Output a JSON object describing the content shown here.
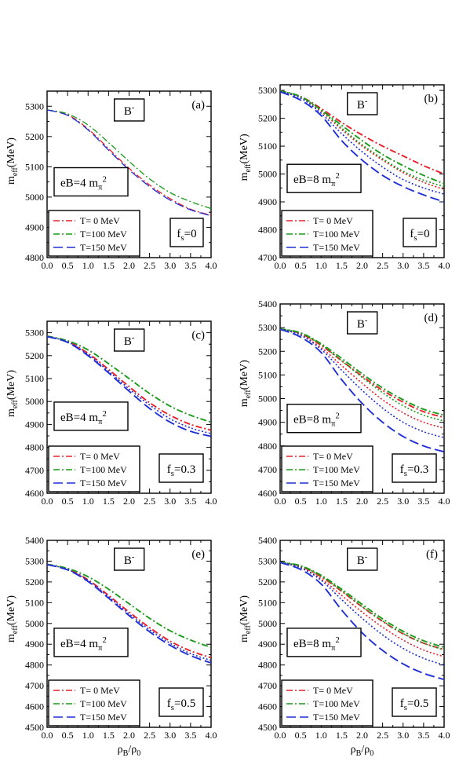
{
  "chart_data": [
    {
      "type": "line",
      "panel_label": "(a)",
      "particle": "B",
      "charge_sup": "-",
      "field_text": "eB=4 m",
      "field_sub": "π",
      "field_sup": "2",
      "fs_main": "f",
      "fs_sub": "s",
      "fs_value": "=0",
      "ylabel_main": "m",
      "ylabel_sub": "eff",
      "ylabel_unit": "(MeV)",
      "xlabel_rho": "ρ",
      "xlabel_B": "B",
      "xlabel_slash": "/",
      "xlabel_0": "0",
      "ylim": [
        4800,
        5350
      ],
      "xlim": [
        0,
        4
      ],
      "yticks": [
        "4800",
        "4900",
        "5000",
        "5100",
        "5200",
        "5300"
      ],
      "xticks": [
        "0.0",
        "0.5",
        "1.0",
        "1.5",
        "2.0",
        "2.5",
        "3.0",
        "3.5",
        "4.0"
      ],
      "legend": [
        "T= 0 MeV",
        "T=100 MeV",
        "T=150 MeV"
      ],
      "colors": [
        "#e8202a",
        "#1a9a1a",
        "#1f2fd4"
      ],
      "series": [
        {
          "name": "T= 0 MeV",
          "style": "dashdot",
          "x": [
            0,
            0.5,
            1,
            1.5,
            2,
            2.5,
            3,
            3.5,
            4
          ],
          "y": [
            5288,
            5272,
            5225,
            5160,
            5095,
            5040,
            4995,
            4960,
            4940
          ]
        },
        {
          "name": "T=100 MeV",
          "style": "dashdot",
          "x": [
            0,
            0.5,
            1,
            1.5,
            2,
            2.5,
            3,
            3.5,
            4
          ],
          "y": [
            5288,
            5275,
            5238,
            5180,
            5118,
            5060,
            5015,
            4985,
            4962
          ]
        },
        {
          "name": "T=150 MeV",
          "style": "dash",
          "x": [
            0,
            0.5,
            1,
            1.5,
            2,
            2.5,
            3,
            3.5,
            4
          ],
          "y": [
            5288,
            5270,
            5222,
            5155,
            5090,
            5035,
            4990,
            4958,
            4938
          ]
        }
      ]
    },
    {
      "type": "line",
      "panel_label": "(b)",
      "particle": "B",
      "charge_sup": "-",
      "field_text": "eB=8 m",
      "field_sub": "π",
      "field_sup": "2",
      "fs_main": "f",
      "fs_sub": "s",
      "fs_value": "=0",
      "ylabel_main": "m",
      "ylabel_sub": "eff",
      "ylabel_unit": "(MeV)",
      "xlabel_rho": "ρ",
      "xlabel_B": "B",
      "xlabel_slash": "/",
      "xlabel_0": "0",
      "ylim": [
        4700,
        5320
      ],
      "xlim": [
        0,
        4
      ],
      "yticks": [
        "4700",
        "4800",
        "4900",
        "5000",
        "5100",
        "5200",
        "5300"
      ],
      "xticks": [
        "0.0",
        "0.5",
        "1.0",
        "1.5",
        "2.0",
        "2.5",
        "3.0",
        "3.5",
        "4.0"
      ],
      "legend": [
        "T= 0 MeV",
        "T=100 MeV",
        "T=150 MeV"
      ],
      "colors": [
        "#e8202a",
        "#1a9a1a",
        "#1f2fd4"
      ],
      "series": [
        {
          "name": "T= 0 MeV",
          "style": "dashdot",
          "x": [
            0,
            0.5,
            1,
            1.5,
            2,
            2.5,
            3,
            3.5,
            4
          ],
          "y": [
            5298,
            5278,
            5235,
            5185,
            5140,
            5100,
            5065,
            5030,
            5000
          ]
        },
        {
          "name": "T=100 MeV",
          "style": "dashdot",
          "x": [
            0,
            0.5,
            1,
            1.5,
            2,
            2.5,
            3,
            3.5,
            4
          ],
          "y": [
            5298,
            5278,
            5230,
            5175,
            5120,
            5070,
            5030,
            4995,
            4965
          ]
        },
        {
          "name": "T=150 MeV",
          "style": "dash",
          "x": [
            0,
            0.5,
            1,
            1.5,
            2,
            2.5,
            3,
            3.5,
            4
          ],
          "y": [
            5295,
            5265,
            5210,
            5120,
            5050,
            4995,
            4955,
            4925,
            4900
          ]
        },
        {
          "name": "",
          "style": "dot",
          "color": "#e8202a",
          "x": [
            0,
            0.5,
            1,
            1.5,
            2,
            2.5,
            3,
            3.5,
            4
          ],
          "y": [
            5298,
            5275,
            5225,
            5160,
            5100,
            5050,
            5005,
            4970,
            4945
          ]
        },
        {
          "name": "",
          "style": "dot",
          "color": "#1a9a1a",
          "x": [
            0,
            0.5,
            1,
            1.5,
            2,
            2.5,
            3,
            3.5,
            4
          ],
          "y": [
            5298,
            5277,
            5228,
            5165,
            5105,
            5055,
            5010,
            4978,
            4955
          ]
        },
        {
          "name": "",
          "style": "dot",
          "color": "#1f2fd4",
          "x": [
            0,
            0.5,
            1,
            1.5,
            2,
            2.5,
            3,
            3.5,
            4
          ],
          "y": [
            5296,
            5272,
            5218,
            5145,
            5080,
            5025,
            4980,
            4950,
            4928
          ]
        }
      ]
    },
    {
      "type": "line",
      "panel_label": "(c)",
      "particle": "B",
      "charge_sup": "-",
      "field_text": "eB=4 m",
      "field_sub": "π",
      "field_sup": "2",
      "fs_main": "f",
      "fs_sub": "s",
      "fs_value": "=0.3",
      "ylabel_main": "m",
      "ylabel_sub": "eff",
      "ylabel_unit": "(MeV)",
      "xlabel_rho": "ρ",
      "xlabel_B": "B",
      "xlabel_slash": "/",
      "xlabel_0": "0",
      "ylim": [
        4600,
        5350
      ],
      "xlim": [
        0,
        4
      ],
      "yticks": [
        "4600",
        "4700",
        "4800",
        "4900",
        "5000",
        "5100",
        "5200",
        "5300"
      ],
      "xticks": [
        "0.0",
        "0.5",
        "1.0",
        "1.5",
        "2.0",
        "2.5",
        "3.0",
        "3.5",
        "4.0"
      ],
      "legend": [
        "T= 0 MeV",
        "T=100 MeV",
        "T=150 MeV"
      ],
      "colors": [
        "#e8202a",
        "#1a9a1a",
        "#1f2fd4"
      ],
      "series": [
        {
          "name": "T= 0 MeV",
          "style": "dashdot",
          "x": [
            0,
            0.5,
            1,
            1.5,
            2,
            2.5,
            3,
            3.5,
            4
          ],
          "y": [
            5285,
            5262,
            5210,
            5140,
            5065,
            4995,
            4940,
            4900,
            4875
          ]
        },
        {
          "name": "T=100 MeV",
          "style": "dashdot",
          "x": [
            0,
            0.5,
            1,
            1.5,
            2,
            2.5,
            3,
            3.5,
            4
          ],
          "y": [
            5285,
            5265,
            5225,
            5165,
            5100,
            5035,
            4980,
            4940,
            4910
          ]
        },
        {
          "name": "T=150 MeV",
          "style": "dash",
          "x": [
            0,
            0.5,
            1,
            1.5,
            2,
            2.5,
            3,
            3.5,
            4
          ],
          "y": [
            5283,
            5258,
            5200,
            5125,
            5045,
            4970,
            4910,
            4870,
            4848
          ]
        },
        {
          "name": "",
          "style": "dot",
          "color": "#1f2fd4",
          "x": [
            0,
            0.5,
            1,
            1.5,
            2,
            2.5,
            3,
            3.5,
            4
          ],
          "y": [
            5284,
            5260,
            5205,
            5132,
            5055,
            4985,
            4925,
            4885,
            4860
          ]
        }
      ]
    },
    {
      "type": "line",
      "panel_label": "(d)",
      "particle": "B",
      "charge_sup": "-",
      "field_text": "eB=8 m",
      "field_sub": "π",
      "field_sup": "2",
      "fs_main": "f",
      "fs_sub": "s",
      "fs_value": "=0.3",
      "ylabel_main": "m",
      "ylabel_sub": "eff",
      "ylabel_unit": "(MeV)",
      "xlabel_rho": "ρ",
      "xlabel_B": "B",
      "xlabel_slash": "/",
      "xlabel_0": "0",
      "ylim": [
        4600,
        5400
      ],
      "xlim": [
        0,
        4
      ],
      "yticks": [
        "4600",
        "4700",
        "4800",
        "4900",
        "5000",
        "5100",
        "5200",
        "5300",
        "5400"
      ],
      "xticks": [
        "0.0",
        "0.5",
        "1.0",
        "1.5",
        "2.0",
        "2.5",
        "3.0",
        "3.5",
        "4.0"
      ],
      "legend": [
        "T= 0 MeV",
        "T=100 MeV",
        "T=150 MeV"
      ],
      "colors": [
        "#e8202a",
        "#1a9a1a",
        "#1f2fd4"
      ],
      "series": [
        {
          "name": "T= 0 MeV",
          "style": "dashdot",
          "x": [
            0,
            0.5,
            1,
            1.5,
            2,
            2.5,
            3,
            3.5,
            4
          ],
          "y": [
            5295,
            5275,
            5225,
            5160,
            5095,
            5035,
            4985,
            4945,
            4920
          ]
        },
        {
          "name": "T=100 MeV",
          "style": "dashdot",
          "x": [
            0,
            0.5,
            1,
            1.5,
            2,
            2.5,
            3,
            3.5,
            4
          ],
          "y": [
            5295,
            5278,
            5232,
            5170,
            5105,
            5045,
            4995,
            4955,
            4930
          ]
        },
        {
          "name": "T=150 MeV",
          "style": "dash",
          "x": [
            0,
            0.5,
            1,
            1.5,
            2,
            2.5,
            3,
            3.5,
            4
          ],
          "y": [
            5293,
            5260,
            5195,
            5080,
            4980,
            4900,
            4840,
            4800,
            4775
          ]
        },
        {
          "name": "",
          "style": "dot",
          "color": "#e8202a",
          "x": [
            0,
            0.5,
            1,
            1.5,
            2,
            2.5,
            3,
            3.5,
            4
          ],
          "y": [
            5295,
            5270,
            5215,
            5140,
            5065,
            4995,
            4940,
            4900,
            4875
          ]
        },
        {
          "name": "",
          "style": "dot",
          "color": "#1a9a1a",
          "x": [
            0,
            0.5,
            1,
            1.5,
            2,
            2.5,
            3,
            3.5,
            4
          ],
          "y": [
            5295,
            5276,
            5228,
            5160,
            5090,
            5025,
            4970,
            4930,
            4905
          ]
        },
        {
          "name": "",
          "style": "dot",
          "color": "#1f2fd4",
          "x": [
            0,
            0.5,
            1,
            1.5,
            2,
            2.5,
            3,
            3.5,
            4
          ],
          "y": [
            5294,
            5268,
            5208,
            5120,
            5035,
            4960,
            4900,
            4860,
            4835
          ]
        }
      ]
    },
    {
      "type": "line",
      "panel_label": "(e)",
      "particle": "B",
      "charge_sup": "-",
      "field_text": "eB=4 m",
      "field_sub": "π",
      "field_sup": "2",
      "fs_main": "f",
      "fs_sub": "s",
      "fs_value": "=0.5",
      "ylabel_main": "m",
      "ylabel_sub": "eff",
      "ylabel_unit": "(MeV)",
      "xlabel_rho": "ρ",
      "xlabel_B": "B",
      "xlabel_slash": "/",
      "xlabel_0": "0",
      "ylim": [
        4500,
        5400
      ],
      "xlim": [
        0,
        4
      ],
      "yticks": [
        "4500",
        "4600",
        "4700",
        "4800",
        "4900",
        "5000",
        "5100",
        "5200",
        "5300",
        "5400"
      ],
      "xticks": [
        "0.0",
        "0.5",
        "1.0",
        "1.5",
        "2.0",
        "2.5",
        "3.0",
        "3.5",
        "4.0"
      ],
      "legend": [
        "T= 0 MeV",
        "T=100 MeV",
        "T=150 MeV"
      ],
      "colors": [
        "#e8202a",
        "#1a9a1a",
        "#1f2fd4"
      ],
      "series": [
        {
          "name": "T= 0 MeV",
          "style": "dashdot",
          "x": [
            0,
            0.5,
            1,
            1.5,
            2,
            2.5,
            3,
            3.5,
            4
          ],
          "y": [
            5285,
            5262,
            5210,
            5135,
            5055,
            4980,
            4915,
            4868,
            4835
          ]
        },
        {
          "name": "T=100 MeV",
          "style": "dashdot",
          "x": [
            0,
            0.5,
            1,
            1.5,
            2,
            2.5,
            3,
            3.5,
            4
          ],
          "y": [
            5285,
            5265,
            5225,
            5165,
            5095,
            5025,
            4965,
            4920,
            4885
          ]
        },
        {
          "name": "T=150 MeV",
          "style": "dash",
          "x": [
            0,
            0.5,
            1,
            1.5,
            2,
            2.5,
            3,
            3.5,
            4
          ],
          "y": [
            5283,
            5258,
            5202,
            5122,
            5038,
            4960,
            4895,
            4845,
            4810
          ]
        },
        {
          "name": "",
          "style": "dot",
          "color": "#1f2fd4",
          "x": [
            0,
            0.5,
            1,
            1.5,
            2,
            2.5,
            3,
            3.5,
            4
          ],
          "y": [
            5284,
            5260,
            5206,
            5128,
            5046,
            4970,
            4905,
            4855,
            4822
          ]
        }
      ]
    },
    {
      "type": "line",
      "panel_label": "(f)",
      "particle": "B",
      "charge_sup": "-",
      "field_text": "eB=8 m",
      "field_sub": "π",
      "field_sup": "2",
      "fs_main": "f",
      "fs_sub": "s",
      "fs_value": "=0.5",
      "ylabel_main": "m",
      "ylabel_sub": "eff",
      "ylabel_unit": "(MeV)",
      "xlabel_rho": "ρ",
      "xlabel_B": "B",
      "xlabel_slash": "/",
      "xlabel_0": "0",
      "ylim": [
        4500,
        5400
      ],
      "xlim": [
        0,
        4
      ],
      "yticks": [
        "4500",
        "4600",
        "4700",
        "4800",
        "4900",
        "5000",
        "5100",
        "5200",
        "5300",
        "5400"
      ],
      "xticks": [
        "0.0",
        "0.5",
        "1.0",
        "1.5",
        "2.0",
        "2.5",
        "3.0",
        "3.5",
        "4.0"
      ],
      "legend": [
        "T= 0 MeV",
        "T=100 MeV",
        "T=150 MeV"
      ],
      "colors": [
        "#e8202a",
        "#1a9a1a",
        "#1f2fd4"
      ],
      "series": [
        {
          "name": "T= 0 MeV",
          "style": "dashdot",
          "x": [
            0,
            0.5,
            1,
            1.5,
            2,
            2.5,
            3,
            3.5,
            4
          ],
          "y": [
            5295,
            5275,
            5225,
            5155,
            5080,
            5010,
            4950,
            4905,
            4875
          ]
        },
        {
          "name": "T=100 MeV",
          "style": "dashdot",
          "x": [
            0,
            0.5,
            1,
            1.5,
            2,
            2.5,
            3,
            3.5,
            4
          ],
          "y": [
            5295,
            5278,
            5232,
            5165,
            5092,
            5022,
            4962,
            4917,
            4885
          ]
        },
        {
          "name": "T=150 MeV",
          "style": "dash",
          "x": [
            0,
            0.5,
            1,
            1.5,
            2,
            2.5,
            3,
            3.5,
            4
          ],
          "y": [
            5293,
            5260,
            5190,
            5065,
            4955,
            4870,
            4805,
            4760,
            4730
          ]
        },
        {
          "name": "",
          "style": "dot",
          "color": "#e8202a",
          "x": [
            0,
            0.5,
            1,
            1.5,
            2,
            2.5,
            3,
            3.5,
            4
          ],
          "y": [
            5295,
            5270,
            5215,
            5135,
            5055,
            4982,
            4920,
            4872,
            4840
          ]
        },
        {
          "name": "",
          "style": "dot",
          "color": "#1a9a1a",
          "x": [
            0,
            0.5,
            1,
            1.5,
            2,
            2.5,
            3,
            3.5,
            4
          ],
          "y": [
            5295,
            5276,
            5228,
            5158,
            5082,
            5012,
            4952,
            4905,
            4872
          ]
        },
        {
          "name": "",
          "style": "dot",
          "color": "#1f2fd4",
          "x": [
            0,
            0.5,
            1,
            1.5,
            2,
            2.5,
            3,
            3.5,
            4
          ],
          "y": [
            5294,
            5268,
            5208,
            5115,
            5025,
            4945,
            4880,
            4832,
            4800
          ]
        }
      ]
    }
  ]
}
